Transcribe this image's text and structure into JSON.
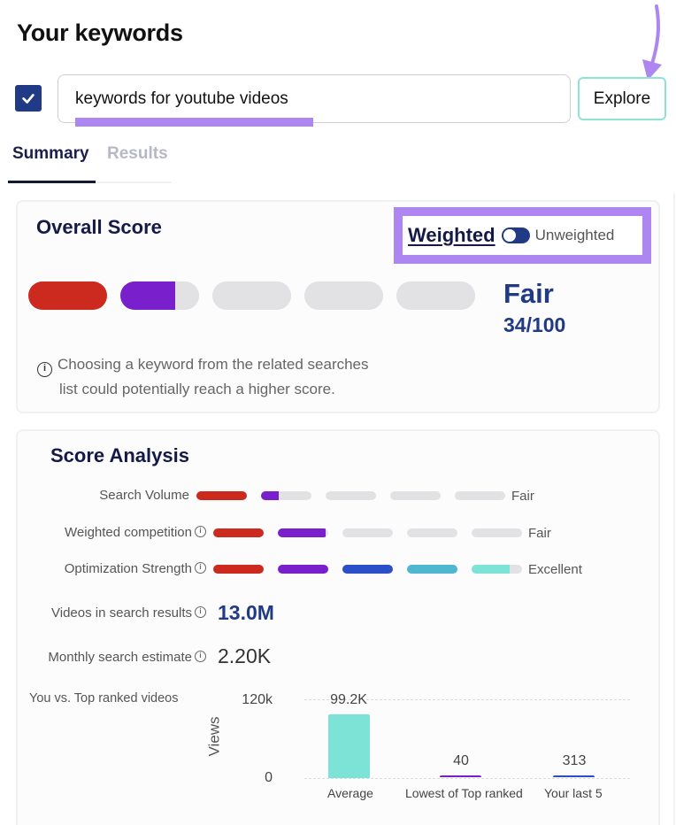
{
  "header": {
    "title": "Your keywords"
  },
  "search": {
    "checked": true,
    "value": "keywords for youtube videos",
    "explore_label": "Explore"
  },
  "tabs": [
    {
      "label": "Summary",
      "active": true
    },
    {
      "label": "Results",
      "active": false
    }
  ],
  "overall_score": {
    "title": "Overall Score",
    "toggle": {
      "left_label": "Weighted",
      "right_label": "Unweighted",
      "selected": "Weighted"
    },
    "segments": [
      {
        "fill_pct": 100,
        "color": "#cc2a1e"
      },
      {
        "fill_pct": 70,
        "color": "#7a1fcc"
      },
      {
        "fill_pct": 0,
        "color": "#e2e2e4"
      },
      {
        "fill_pct": 0,
        "color": "#e2e2e4"
      },
      {
        "fill_pct": 0,
        "color": "#e2e2e4"
      }
    ],
    "rating": "Fair",
    "score": "34/100",
    "note_line1": "Choosing a keyword from the related searches",
    "note_line2": "list could potentially reach a higher score."
  },
  "score_analysis": {
    "title": "Score Analysis",
    "metrics": [
      {
        "label": "Search Volume",
        "has_info": false,
        "rating": "Fair",
        "segments": [
          100,
          35,
          0,
          0,
          0
        ]
      },
      {
        "label": "Weighted competition",
        "has_info": true,
        "rating": "Fair",
        "segments": [
          100,
          95,
          0,
          0,
          0
        ]
      },
      {
        "label": "Optimization Strength",
        "has_info": true,
        "rating": "Excellent",
        "segments": [
          100,
          100,
          100,
          100,
          75
        ]
      }
    ],
    "segment_colors": [
      "#cc2a1e",
      "#7a1fcc",
      "#2a4fc8",
      "#4fb8d0",
      "#7de3d6"
    ],
    "videos_in_results": {
      "label": "Videos in search results",
      "value": "13.0M"
    },
    "monthly_search": {
      "label": "Monthly search estimate",
      "value": "2.20K"
    },
    "chart_label": "You vs. Top ranked videos"
  },
  "chart_data": {
    "type": "bar",
    "title": "You vs. Top ranked videos",
    "categories": [
      "Average",
      "Lowest of Top ranked",
      "Your last 5"
    ],
    "values": [
      99200,
      40,
      313
    ],
    "value_labels": [
      "99.2K",
      "40",
      "313"
    ],
    "colors": [
      "#7de3d6",
      "#7a1fcc",
      "#2a4fc8"
    ],
    "xlabel": "",
    "ylabel": "Views",
    "yticks": [
      "0",
      "120k"
    ],
    "ylim": [
      0,
      120000
    ],
    "grid": true
  }
}
